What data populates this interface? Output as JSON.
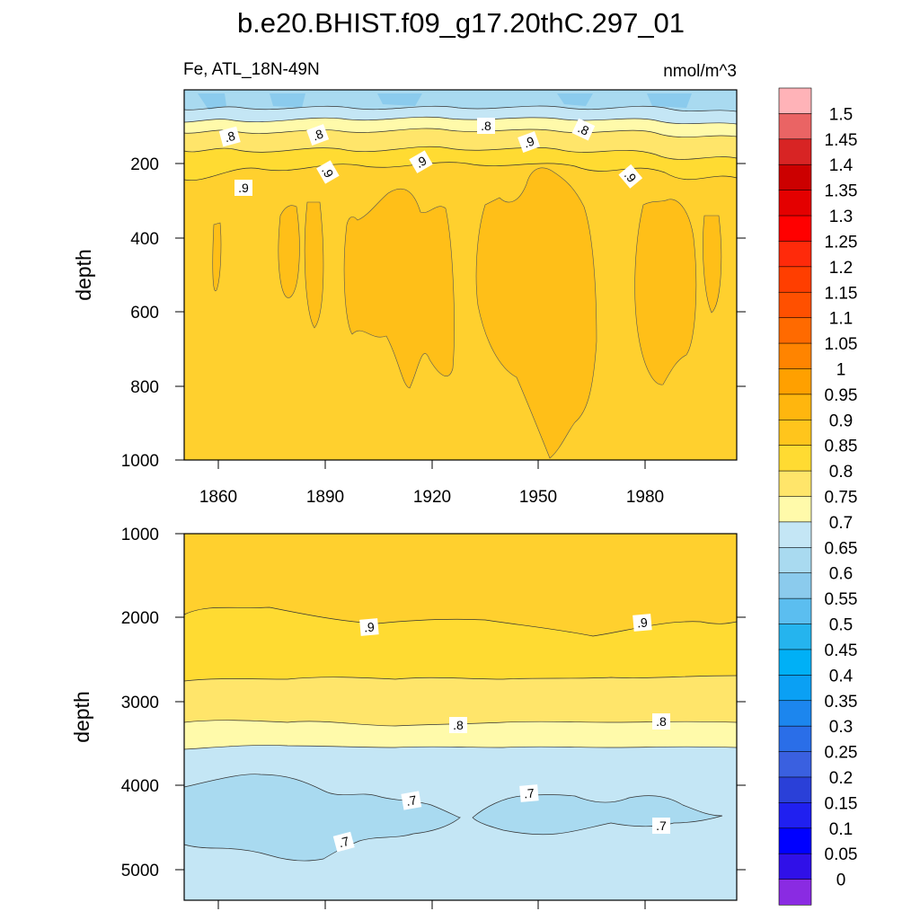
{
  "chart_data": {
    "type": "contour",
    "title": "b.e20.BHIST.f09_g17.20thC.297_01",
    "variable_label": "Fe, ATL_18N-49N",
    "units": "nmol/m^3",
    "colorbar": {
      "levels": [
        "1.5",
        "1.45",
        "1.4",
        "1.35",
        "1.3",
        "1.25",
        "1.2",
        "1.15",
        "1.1",
        "1.05",
        "1",
        "0.95",
        "0.9",
        "0.85",
        "0.8",
        "0.75",
        "0.7",
        "0.65",
        "0.6",
        "0.55",
        "0.5",
        "0.45",
        "0.4",
        "0.35",
        "0.3",
        "0.25",
        "0.2",
        "0.15",
        "0.1",
        "0.05",
        "0"
      ],
      "colors": [
        "#ffb3b8",
        "#ea6464",
        "#d82424",
        "#cc0000",
        "#e40000",
        "#ff0000",
        "#ff2a0a",
        "#ff3e00",
        "#ff5000",
        "#ff6a00",
        "#ff8400",
        "#ffa000",
        "#ffb60e",
        "#ffc51c",
        "#ffdb32",
        "#ffe56a",
        "#fffaaa",
        "#c4e6f5",
        "#a9daf0",
        "#8bcbed",
        "#5bbef0",
        "#25b4ee",
        "#00b0f6",
        "#0aa0f4",
        "#1c86ee",
        "#2a6ee8",
        "#3a60e0",
        "#2a40d8",
        "#2020f0",
        "#0000ff",
        "#3010e8",
        "#8a2be2"
      ]
    },
    "panels": [
      {
        "name": "upper",
        "ylabel": "depth",
        "ylim": [
          0,
          1000
        ],
        "yticks": [
          "200",
          "400",
          "600",
          "800",
          "1000"
        ],
        "xlim": [
          1850,
          2005
        ],
        "xticks": [
          "1860",
          "1890",
          "1920",
          "1950",
          "1980"
        ],
        "contour_labels": [
          ".8",
          ".8",
          ".8",
          ".8",
          ".9",
          ".9",
          ".9",
          ".9",
          ".9"
        ]
      },
      {
        "name": "lower",
        "ylabel": "depth",
        "ylim": [
          1000,
          5400
        ],
        "yticks": [
          "1000",
          "2000",
          "3000",
          "4000",
          "5000"
        ],
        "xlim": [
          1850,
          2005
        ],
        "contour_labels": [
          ".9",
          ".9",
          ".8",
          ".8",
          ".7",
          ".7",
          ".7",
          ".7"
        ]
      }
    ]
  }
}
